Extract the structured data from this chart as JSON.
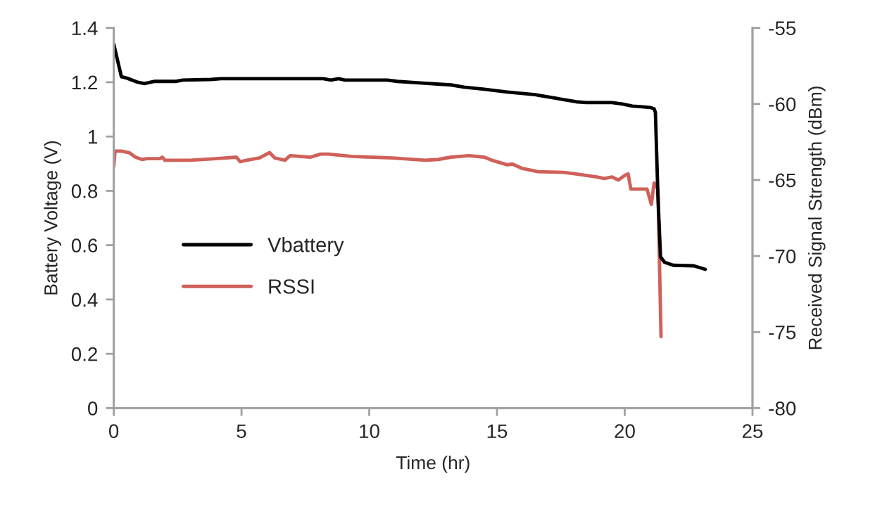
{
  "chart_data": {
    "type": "line",
    "xlabel": "Time (hr)",
    "ylabel": "Battery Voltage (V)",
    "y2label": "Received Signal Strength (dBm)",
    "xlim": [
      0,
      25
    ],
    "xticks": [
      0,
      5,
      10,
      15,
      20,
      25
    ],
    "ylim": [
      0,
      1.4
    ],
    "yticks": [
      0,
      0.2,
      0.4,
      0.6,
      0.8,
      1,
      1.2,
      1.4
    ],
    "y2lim": [
      -80,
      -55
    ],
    "y2ticks": [
      -80,
      -75,
      -70,
      -65,
      -60,
      -55
    ],
    "grid": false,
    "legend": "left",
    "marker": "none",
    "line_style": "solid",
    "series": [
      {
        "name": "Vbattery",
        "color": "#000000",
        "x": [
          0,
          0.3,
          0.52,
          0.94,
          1.2,
          1.6,
          2.45,
          2.7,
          3.8,
          4.2,
          8.2,
          8.5,
          8.8,
          9.05,
          10.7,
          11.1,
          12.07,
          13.2,
          13.7,
          14.5,
          15.4,
          16.5,
          17.3,
          17.6,
          18.1,
          18.5,
          19.5,
          19.9,
          20.3,
          20.6,
          21.0,
          21.15,
          21.2,
          21.3,
          21.4,
          21.56,
          21.9,
          22.7,
          23.15
        ],
        "values": [
          1.34,
          1.22,
          1.215,
          1.2,
          1.195,
          1.203,
          1.203,
          1.208,
          1.21,
          1.213,
          1.213,
          1.208,
          1.213,
          1.208,
          1.208,
          1.203,
          1.197,
          1.19,
          1.182,
          1.174,
          1.164,
          1.154,
          1.141,
          1.136,
          1.128,
          1.125,
          1.125,
          1.12,
          1.112,
          1.11,
          1.107,
          1.102,
          1.089,
          0.778,
          0.557,
          0.537,
          0.526,
          0.524,
          0.511
        ]
      },
      {
        "name": "RSSI",
        "color": "#d0605a",
        "axis": "y2",
        "x": [
          0,
          0.05,
          0.3,
          0.6,
          0.85,
          1.1,
          1.3,
          1.8,
          1.9,
          2.0,
          3.0,
          4.0,
          4.8,
          4.95,
          5.2,
          5.7,
          6.1,
          6.3,
          6.7,
          6.9,
          7.7,
          8.1,
          8.4,
          9.3,
          10.9,
          12.2,
          12.7,
          13.2,
          13.9,
          14.5,
          14.8,
          15.4,
          15.6,
          16.0,
          16.6,
          17.6,
          18.1,
          18.9,
          19.2,
          19.5,
          19.75,
          20.0,
          20.13,
          20.24,
          20.87,
          21.04,
          21.15,
          21.3,
          21.42
        ],
        "values": [
          -64.1,
          -63.1,
          -63.1,
          -63.2,
          -63.5,
          -63.65,
          -63.6,
          -63.6,
          -63.5,
          -63.7,
          -63.7,
          -63.6,
          -63.5,
          -63.8,
          -63.7,
          -63.55,
          -63.2,
          -63.55,
          -63.7,
          -63.4,
          -63.5,
          -63.3,
          -63.3,
          -63.45,
          -63.55,
          -63.7,
          -63.65,
          -63.5,
          -63.4,
          -63.5,
          -63.7,
          -64.0,
          -63.95,
          -64.25,
          -64.45,
          -64.5,
          -64.6,
          -64.8,
          -64.9,
          -64.8,
          -65.0,
          -64.7,
          -64.6,
          -65.6,
          -65.6,
          -66.6,
          -65.2,
          -65.6,
          -75.3
        ]
      }
    ]
  }
}
